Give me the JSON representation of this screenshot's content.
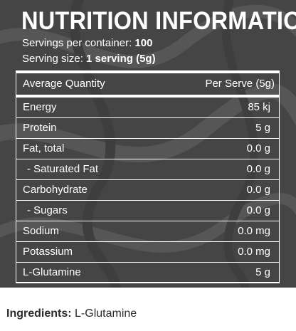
{
  "panel": {
    "title": "NUTRITION INFORMATION",
    "servings_label": "Servings per container:",
    "servings_value": "100",
    "serving_size_label": "Serving size:",
    "serving_size_value": "1 serving (5g)",
    "background_color": "#454545",
    "text_color": "#ffffff"
  },
  "table": {
    "header": {
      "label": "Average Quantity",
      "value": "Per Serve (5g)"
    },
    "rows": [
      {
        "label": "Energy",
        "value": "85 kj"
      },
      {
        "label": "Protein",
        "value": "5 g"
      },
      {
        "label": "Fat, total",
        "value": "0.0 g"
      },
      {
        "label": "- Saturated Fat",
        "value": "0.0 g"
      },
      {
        "label": "Carbohydrate",
        "value": "0.0 g"
      },
      {
        "label": "- Sugars",
        "value": "0.0 g"
      },
      {
        "label": "Sodium",
        "value": "0.0 mg"
      },
      {
        "label": "Potassium",
        "value": "0.0 mg"
      },
      {
        "label": "L-Glutamine",
        "value": "5 g"
      }
    ]
  },
  "ingredients": {
    "label": "Ingredients:",
    "value": "L-Glutamine"
  }
}
